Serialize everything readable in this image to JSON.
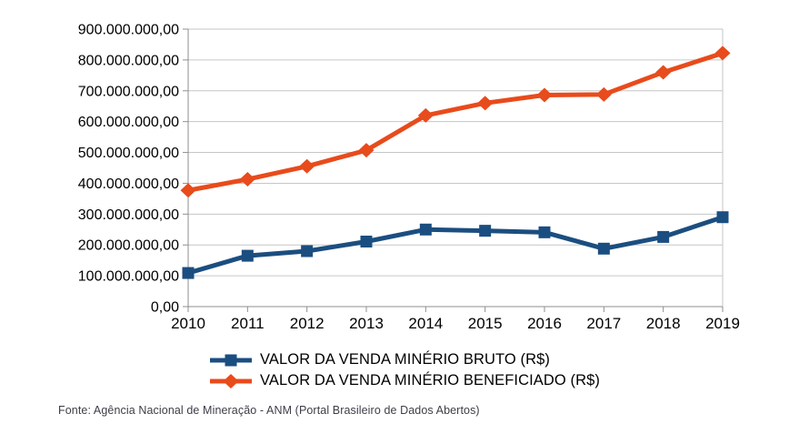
{
  "chart_data": {
    "type": "line",
    "title": "",
    "xlabel": "",
    "ylabel": "",
    "grid": true,
    "legend_position": "bottom",
    "categories": [
      "2010",
      "2011",
      "2012",
      "2013",
      "2014",
      "2015",
      "2016",
      "2017",
      "2018",
      "2019"
    ],
    "series": [
      {
        "name": "VALOR DA VENDA MINÉRIO BRUTO (R$)",
        "color": "#1b4e80",
        "marker": "square",
        "values": [
          109000000,
          165000000,
          180000000,
          211000000,
          250000000,
          246000000,
          241000000,
          188000000,
          226000000,
          290000000
        ]
      },
      {
        "name": "VALOR DA VENDA MINÉRIO BENEFICIADO (R$)",
        "color": "#e84b1c",
        "marker": "diamond",
        "values": [
          377000000,
          413000000,
          455000000,
          507000000,
          620000000,
          660000000,
          686000000,
          688000000,
          760000000,
          822000000
        ]
      }
    ],
    "y_axis": {
      "min": 0,
      "max": 900000000,
      "tick_interval": 100000000
    },
    "y_ticks": [
      {
        "value": 0,
        "label": "0,00"
      },
      {
        "value": 100000000,
        "label": "100.000.000,00"
      },
      {
        "value": 200000000,
        "label": "200.000.000,00"
      },
      {
        "value": 300000000,
        "label": "300.000.000,00"
      },
      {
        "value": 400000000,
        "label": "400.000.000,00"
      },
      {
        "value": 500000000,
        "label": "500.000.000,00"
      },
      {
        "value": 600000000,
        "label": "600.000.000,00"
      },
      {
        "value": 700000000,
        "label": "700.000.000,00"
      },
      {
        "value": 800000000,
        "label": "800.000.000,00"
      },
      {
        "value": 900000000,
        "label": "900.000.000,00"
      }
    ],
    "style": {
      "grid_color": "#c6c6c6",
      "axis_color": "#8f8f8f",
      "text_color": "#000000",
      "background": "#ffffff"
    }
  },
  "footer": {
    "source": "Fonte: Agência Nacional de Mineração - ANM (Portal Brasileiro de Dados Abertos)"
  }
}
